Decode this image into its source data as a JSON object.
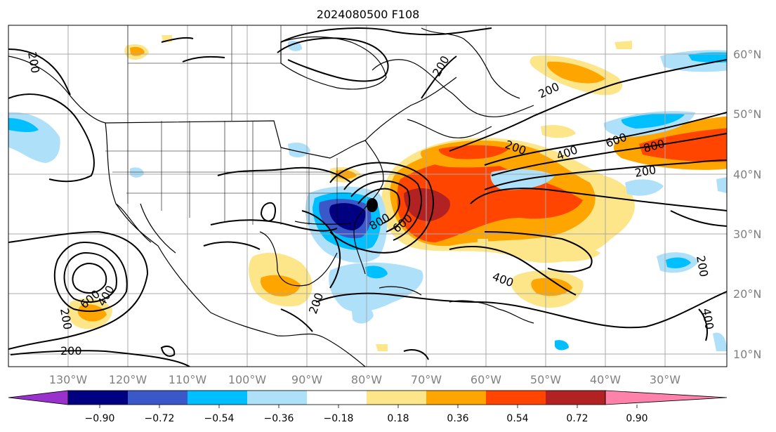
{
  "title": "2024080500 F108",
  "map": {
    "lon_labels": [
      "130°W",
      "120°W",
      "110°W",
      "100°W",
      "90°W",
      "80°W",
      "70°W",
      "60°W",
      "50°W",
      "40°W",
      "30°W"
    ],
    "lat_labels": [
      "60°N",
      "50°N",
      "40°N",
      "30°N",
      "20°N",
      "10°N"
    ]
  },
  "colorbar": {
    "colors": [
      "#9932cc",
      "#000080",
      "#3a58c8",
      "#00bfff",
      "#afe0fa",
      "#ffffff",
      "#fde68a",
      "#ffa500",
      "#ff4500",
      "#b22222",
      "#ff82ab"
    ],
    "tick_labels": [
      "−0.90",
      "−0.72",
      "−0.54",
      "−0.36",
      "−0.18",
      "0.18",
      "0.36",
      "0.54",
      "0.72",
      "0.90"
    ]
  },
  "contour_labels": [
    "200",
    "200",
    "200",
    "600",
    "400",
    "600",
    "400",
    "200",
    "800",
    "200",
    "600",
    "800",
    "200",
    "400",
    "200",
    "200",
    "400",
    "200"
  ],
  "center_marker": "storm-center"
}
